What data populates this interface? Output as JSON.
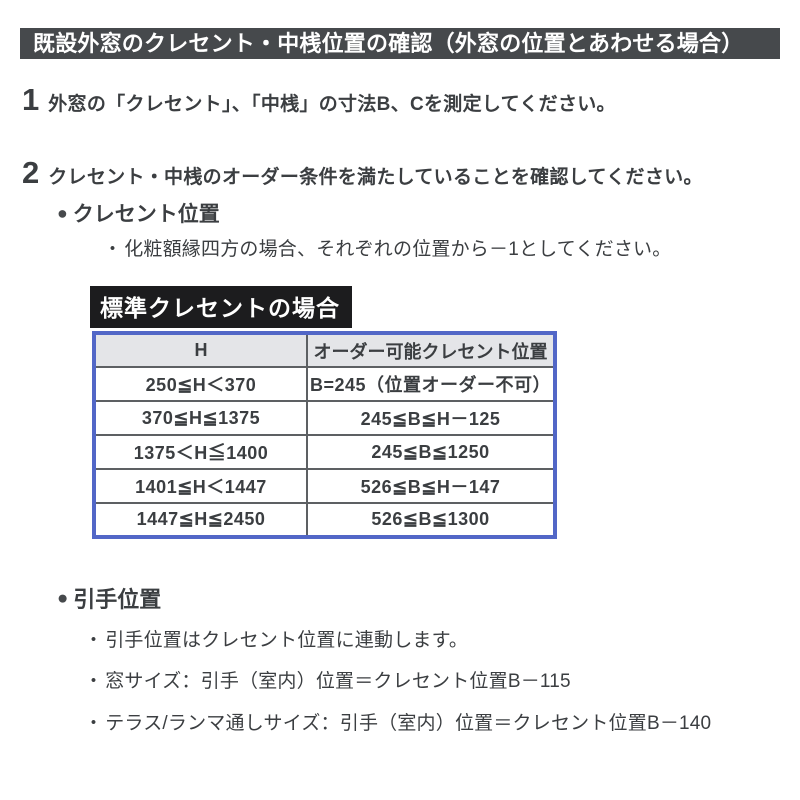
{
  "title_bar": {
    "text": "既設外窓のクレセント・中桟位置の確認（外窓の位置とあわせる場合）"
  },
  "glyphs": {
    "bullet": "●",
    "sub_bullet": "・"
  },
  "steps": [
    {
      "number": "1",
      "text": "外窓の「クレセント」、「中桟」の寸法B、Cを測定してください。"
    },
    {
      "number": "2",
      "text": "クレセント・中桟のオーダー条件を満たしていることを確認してください。"
    }
  ],
  "crescent_section": {
    "heading": "クレセント位置",
    "note": "化粧額縁四方の場合、それぞれの位置から－1としてください。",
    "table_label": "標準クレセントの場合",
    "table": {
      "headers": [
        "H",
        "オーダー可能クレセント位置"
      ],
      "rows": [
        [
          "250≦H＜370",
          "B=245（位置オーダー不可）"
        ],
        [
          "370≦H≦1375",
          "245≦B≦H－125"
        ],
        [
          "1375＜H≦1400",
          "245≦B≦1250"
        ],
        [
          "1401≦H＜1447",
          "526≦B≦H－147"
        ],
        [
          "1447≦H≦2450",
          "526≦B≦1300"
        ]
      ]
    }
  },
  "handle_section": {
    "heading": "引手位置",
    "notes": [
      "引手位置はクレセント位置に連動します。",
      "窓サイズ：引手（室内）位置＝クレセント位置B－115",
      "テラス/ランマ通しサイズ：引手（室内）位置＝クレセント位置B－140"
    ]
  },
  "colors": {
    "title_bar_bg": "#46494c",
    "label_bg": "#1c1c1e",
    "table_border": "#5267c7",
    "table_header_bg": "#e4e5e8",
    "table_grid": "#5d6063",
    "text": "#3b3e41"
  }
}
